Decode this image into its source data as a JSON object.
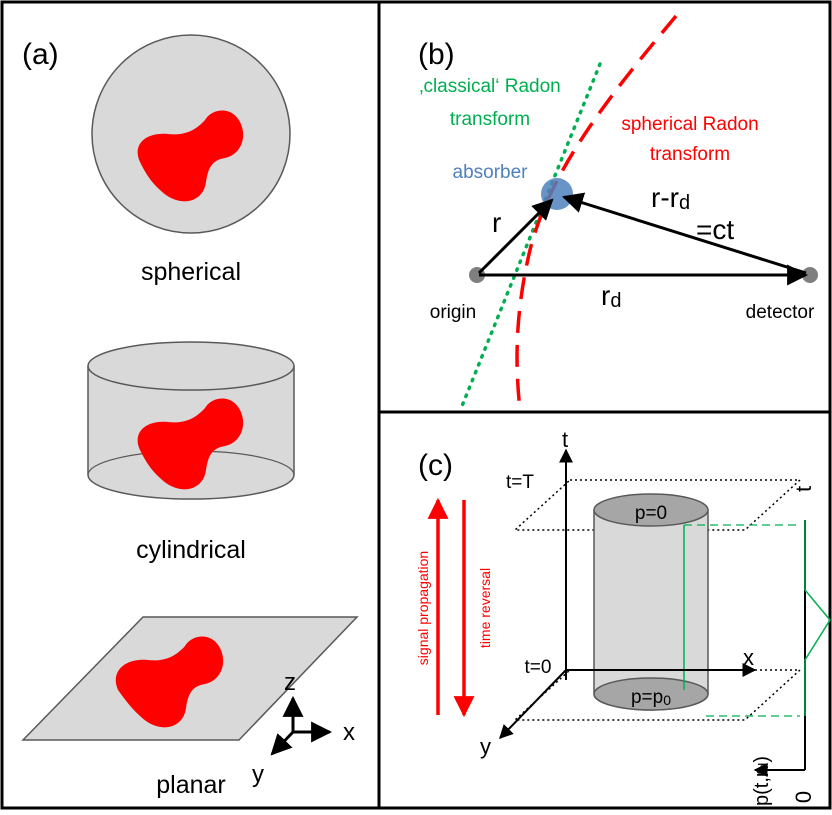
{
  "panel_a": {
    "label": "(a)",
    "spherical_label": "spherical",
    "cylindrical_label": "cylindrical",
    "planar_label": "planar",
    "axis_z": "z",
    "axis_x": "x",
    "axis_y": "y"
  },
  "panel_b": {
    "label": "(b)",
    "classical_line1": "‚classical‘ Radon",
    "classical_line2": "transform",
    "spherical_line1": "spherical Radon",
    "spherical_line2": "transform",
    "absorber": "absorber",
    "r": "r",
    "r_minus_rd_base": "r-r",
    "r_minus_rd_sub": "d",
    "eq_ct": "=ct",
    "rd_base": "r",
    "rd_sub": "d",
    "origin": "origin",
    "detector": "detector"
  },
  "panel_c": {
    "label": "(c)",
    "axis_t": "t",
    "t_T": "t=T",
    "t_0": "t=0",
    "axis_x": "x",
    "axis_y": "y",
    "p_zero": "p=0",
    "p_p0_base": "p=p",
    "p_p0_sub": "0",
    "signal_propagation": "signal propagation",
    "time_reversal": "time reversal",
    "graph_t": "t",
    "graph_p": "p(t,r",
    "graph_p_sub": "d",
    "graph_p_close": ")",
    "graph_zero": "0"
  },
  "colors": {
    "red": "#ff0000",
    "green": "#00b050",
    "blue": "#4f81bd",
    "gray_fill": "#d9d9d9",
    "black": "#000000"
  }
}
